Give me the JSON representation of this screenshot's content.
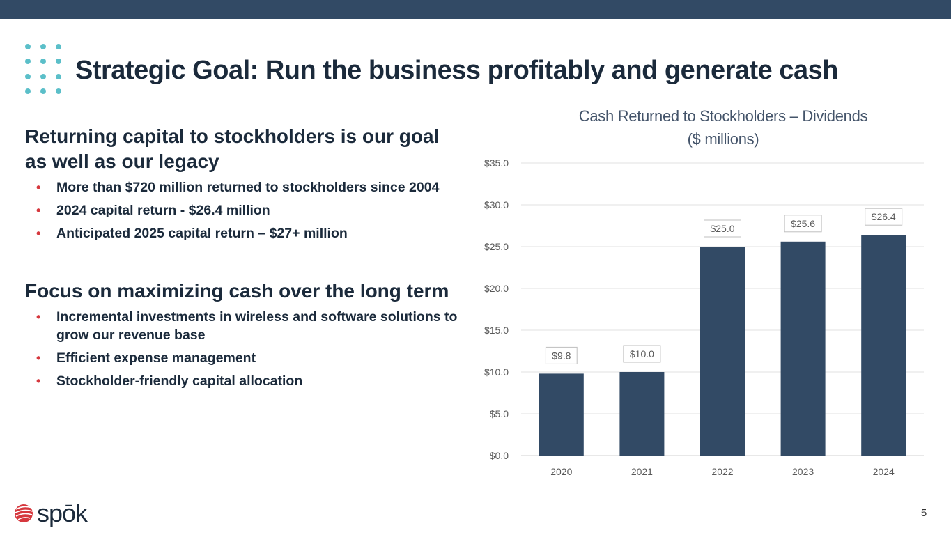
{
  "slide": {
    "title": "Strategic Goal: Run the business profitably and generate cash",
    "page_number": "5",
    "logo_text": "spōk",
    "colors": {
      "top_bar": "#324a65",
      "accent_dots": "#5bbfc9",
      "bullet": "#d6383e",
      "bar": "#324a65"
    }
  },
  "left": {
    "section1": {
      "heading": "Returning capital to stockholders is our goal as well as our legacy",
      "bullets": [
        "More than $720 million returned to stockholders since 2004",
        "2024 capital return - $26.4 million",
        "Anticipated 2025 capital return – $27+ million"
      ]
    },
    "section2": {
      "heading": "Focus on maximizing cash over the long term",
      "bullets": [
        "Incremental investments in wireless and software solutions to grow our revenue base",
        "Efficient expense management",
        "Stockholder-friendly capital allocation"
      ]
    }
  },
  "chart_data": {
    "type": "bar",
    "title": "Cash Returned to Stockholders – Dividends",
    "subtitle": "($ millions)",
    "categories": [
      "2020",
      "2021",
      "2022",
      "2023",
      "2024"
    ],
    "values": [
      9.8,
      10.0,
      25.0,
      25.6,
      26.4
    ],
    "data_labels": [
      "$9.8",
      "$10.0",
      "$25.0",
      "$25.6",
      "$26.4"
    ],
    "y_ticks": [
      "$0.0",
      "$5.0",
      "$10.0",
      "$15.0",
      "$20.0",
      "$25.0",
      "$30.0",
      "$35.0"
    ],
    "ylim": [
      0,
      35
    ],
    "grid": true,
    "xlabel": "",
    "ylabel": ""
  }
}
